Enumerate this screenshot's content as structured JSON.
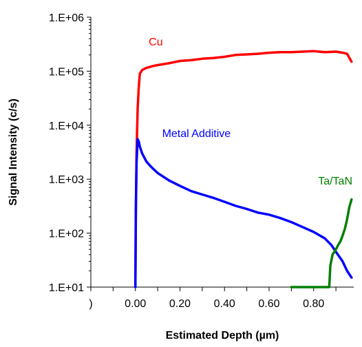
{
  "chart_data": {
    "type": "line",
    "title": "",
    "xlabel": "Estimated Depth (µm)",
    "ylabel": "Signal Intensity (c/s)",
    "y_scale": "log",
    "ylim": [
      10,
      1000000
    ],
    "xlim": [
      -0.2,
      0.98
    ],
    "grid": false,
    "legend": "none (series labelled inline)",
    "y_ticks": [
      {
        "value": 1000000,
        "label": "1.E+06"
      },
      {
        "value": 100000,
        "label": "1.E+05"
      },
      {
        "value": 10000,
        "label": "1.E+04"
      },
      {
        "value": 1000,
        "label": "1.E+03"
      },
      {
        "value": 100,
        "label": "1.E+02"
      },
      {
        "value": 10,
        "label": "1.E+01"
      }
    ],
    "x_ticks": [
      {
        "value": -0.2,
        "label": ")"
      },
      {
        "value": 0.0,
        "label": "0.00"
      },
      {
        "value": 0.2,
        "label": "0.20"
      },
      {
        "value": 0.4,
        "label": "0.40"
      },
      {
        "value": 0.6,
        "label": "0.60"
      },
      {
        "value": 0.8,
        "label": "0.80"
      }
    ],
    "series": [
      {
        "name": "Cu",
        "color": "#ff0000",
        "points": [
          [
            0.0,
            10
          ],
          [
            0.002,
            200
          ],
          [
            0.005,
            3000
          ],
          [
            0.01,
            20000
          ],
          [
            0.015,
            50000
          ],
          [
            0.02,
            90000
          ],
          [
            0.03,
            105000
          ],
          [
            0.05,
            115000
          ],
          [
            0.08,
            125000
          ],
          [
            0.1,
            130000
          ],
          [
            0.15,
            140000
          ],
          [
            0.2,
            155000
          ],
          [
            0.25,
            160000
          ],
          [
            0.3,
            170000
          ],
          [
            0.35,
            175000
          ],
          [
            0.4,
            185000
          ],
          [
            0.45,
            200000
          ],
          [
            0.5,
            205000
          ],
          [
            0.55,
            210000
          ],
          [
            0.6,
            220000
          ],
          [
            0.65,
            225000
          ],
          [
            0.7,
            225000
          ],
          [
            0.75,
            230000
          ],
          [
            0.8,
            235000
          ],
          [
            0.85,
            225000
          ],
          [
            0.9,
            230000
          ],
          [
            0.93,
            220000
          ],
          [
            0.95,
            210000
          ],
          [
            0.97,
            150000
          ]
        ]
      },
      {
        "name": "Metal Additive",
        "color": "#0000ff",
        "points": [
          [
            0.0,
            10
          ],
          [
            0.002,
            300
          ],
          [
            0.005,
            2000
          ],
          [
            0.01,
            5500
          ],
          [
            0.015,
            5000
          ],
          [
            0.02,
            4000
          ],
          [
            0.03,
            3000
          ],
          [
            0.05,
            2100
          ],
          [
            0.07,
            1700
          ],
          [
            0.1,
            1300
          ],
          [
            0.15,
            950
          ],
          [
            0.2,
            750
          ],
          [
            0.25,
            600
          ],
          [
            0.3,
            520
          ],
          [
            0.35,
            450
          ],
          [
            0.4,
            380
          ],
          [
            0.45,
            320
          ],
          [
            0.5,
            280
          ],
          [
            0.55,
            240
          ],
          [
            0.6,
            220
          ],
          [
            0.65,
            190
          ],
          [
            0.7,
            160
          ],
          [
            0.75,
            130
          ],
          [
            0.8,
            105
          ],
          [
            0.85,
            80
          ],
          [
            0.88,
            60
          ],
          [
            0.9,
            45
          ],
          [
            0.93,
            30
          ],
          [
            0.95,
            20
          ],
          [
            0.97,
            15
          ]
        ]
      },
      {
        "name": "Ta/TaN",
        "color": "#008000",
        "points": [
          [
            0.7,
            10
          ],
          [
            0.72,
            10
          ],
          [
            0.75,
            10
          ],
          [
            0.78,
            10
          ],
          [
            0.8,
            10
          ],
          [
            0.83,
            10
          ],
          [
            0.86,
            10
          ],
          [
            0.87,
            10
          ],
          [
            0.875,
            25
          ],
          [
            0.885,
            40
          ],
          [
            0.9,
            50
          ],
          [
            0.91,
            60
          ],
          [
            0.92,
            70
          ],
          [
            0.93,
            90
          ],
          [
            0.94,
            120
          ],
          [
            0.95,
            180
          ],
          [
            0.96,
            300
          ],
          [
            0.97,
            420
          ]
        ]
      }
    ],
    "annotations": [
      {
        "text": "Cu",
        "color": "#ff0000",
        "x": 0.06,
        "y": 300000
      },
      {
        "text": "Metal Additive",
        "color": "#0000ff",
        "x": 0.12,
        "y": 6000
      },
      {
        "text": "Ta/TaN",
        "color": "#008000",
        "x": 0.82,
        "y": 800
      }
    ]
  }
}
